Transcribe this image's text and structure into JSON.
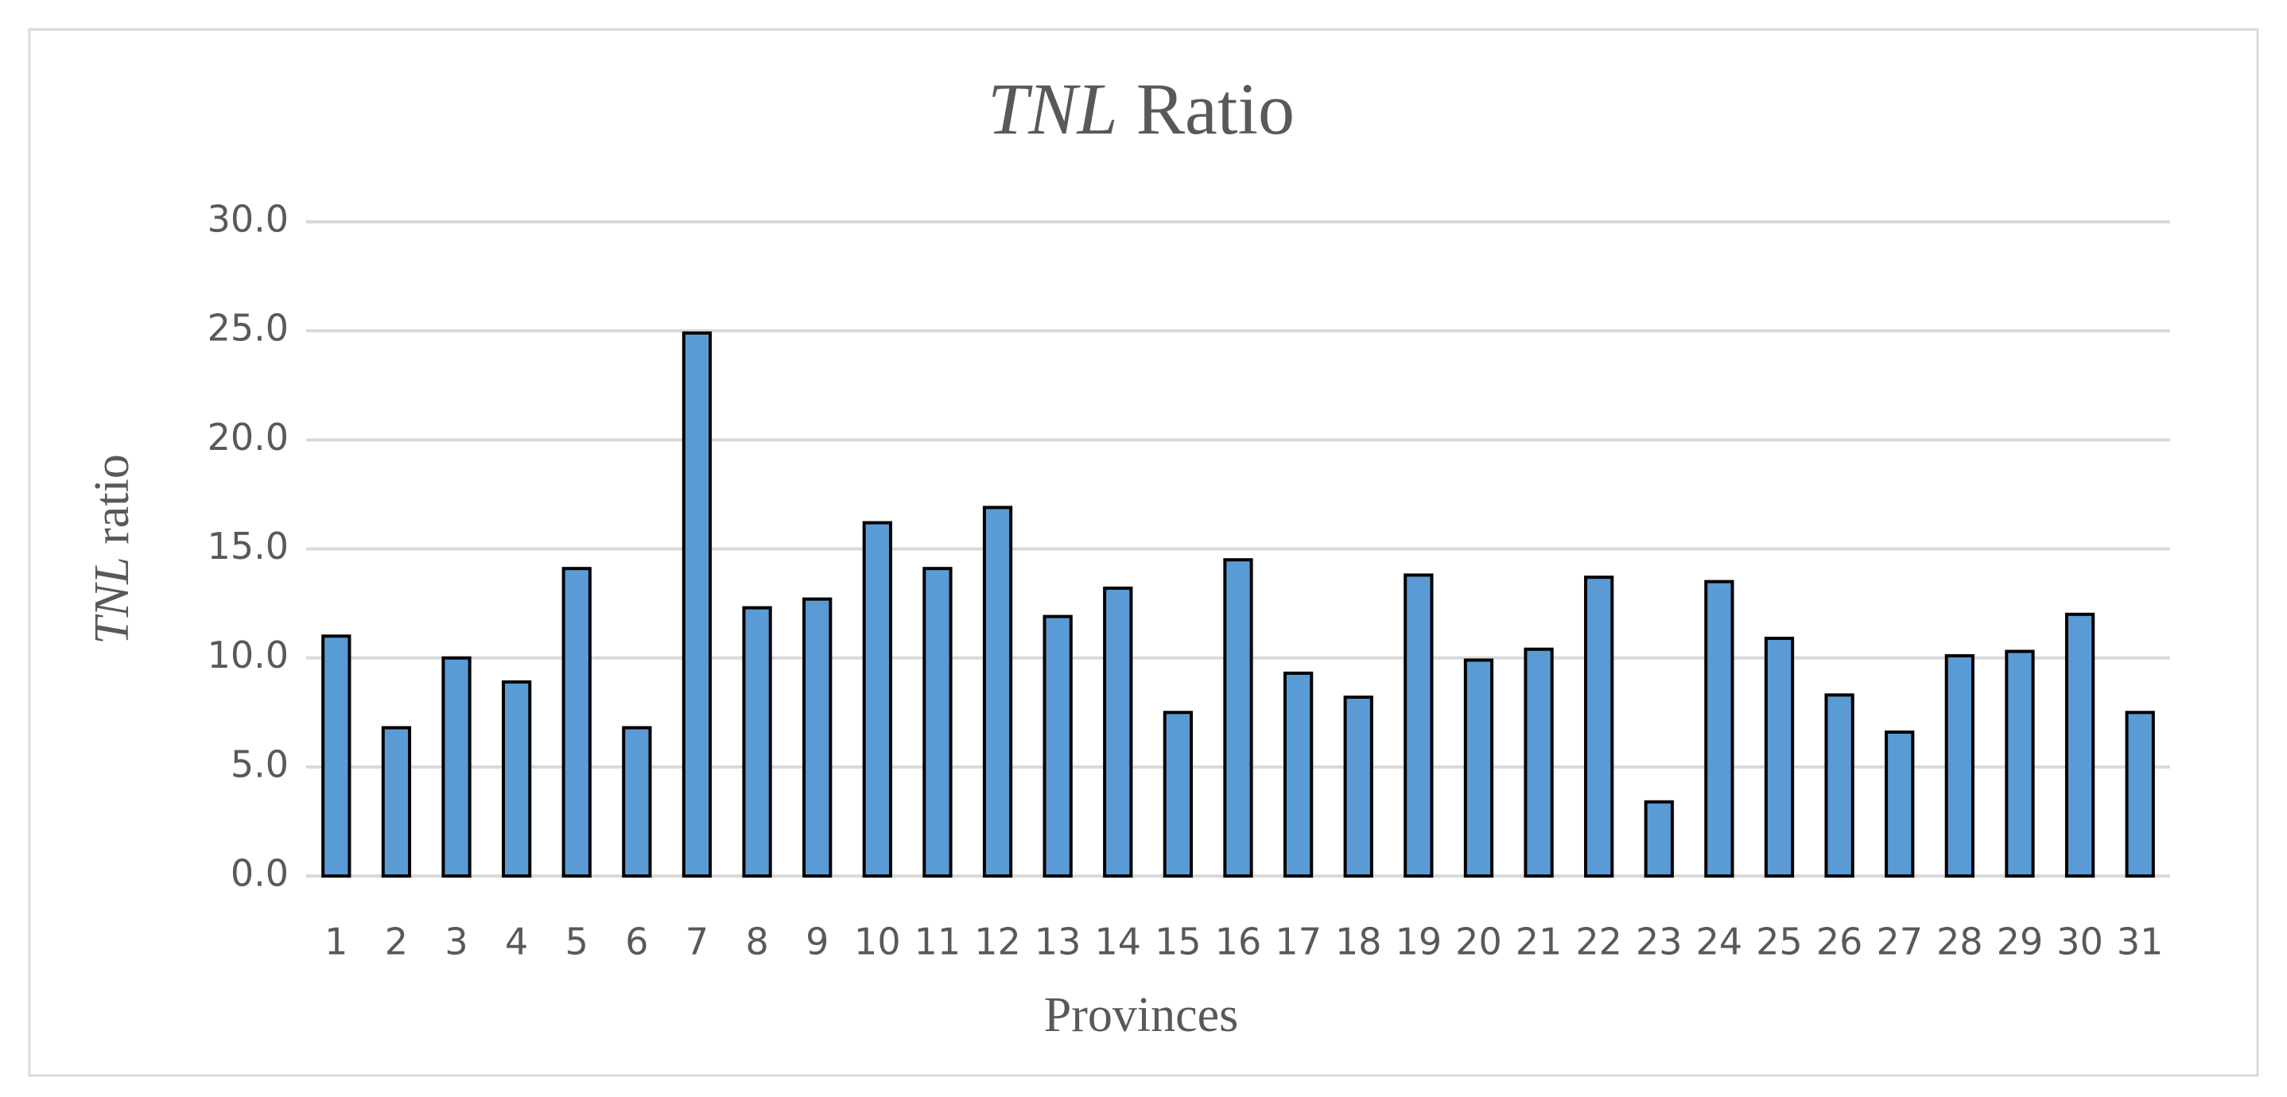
{
  "chart_data": {
    "type": "bar",
    "title": "TNL Ratio",
    "x_label": "Provinces",
    "y_label": "TNL ratio",
    "categories": [
      "1",
      "2",
      "3",
      "4",
      "5",
      "6",
      "7",
      "8",
      "9",
      "10",
      "11",
      "12",
      "13",
      "14",
      "15",
      "16",
      "17",
      "18",
      "19",
      "20",
      "21",
      "22",
      "23",
      "24",
      "25",
      "26",
      "27",
      "28",
      "29",
      "30",
      "31"
    ],
    "values": [
      11.0,
      6.8,
      10.0,
      8.9,
      14.1,
      6.8,
      24.9,
      12.3,
      12.7,
      16.2,
      14.1,
      16.9,
      11.9,
      13.2,
      7.5,
      14.5,
      9.3,
      8.2,
      13.8,
      9.9,
      10.4,
      13.7,
      3.4,
      13.5,
      10.9,
      8.3,
      6.6,
      10.1,
      10.3,
      12.0,
      7.5
    ],
    "color": "#5b9bd5",
    "ylim": [
      0,
      30
    ],
    "yticks": [
      {
        "value": 0,
        "label": "0.0"
      },
      {
        "value": 5,
        "label": "5.0"
      },
      {
        "value": 10,
        "label": "10.0"
      },
      {
        "value": 15,
        "label": "15.0"
      },
      {
        "value": 20,
        "label": "20.0"
      },
      {
        "value": 25,
        "label": "25.0"
      },
      {
        "value": 30,
        "label": "30.0"
      }
    ],
    "grid": true
  }
}
